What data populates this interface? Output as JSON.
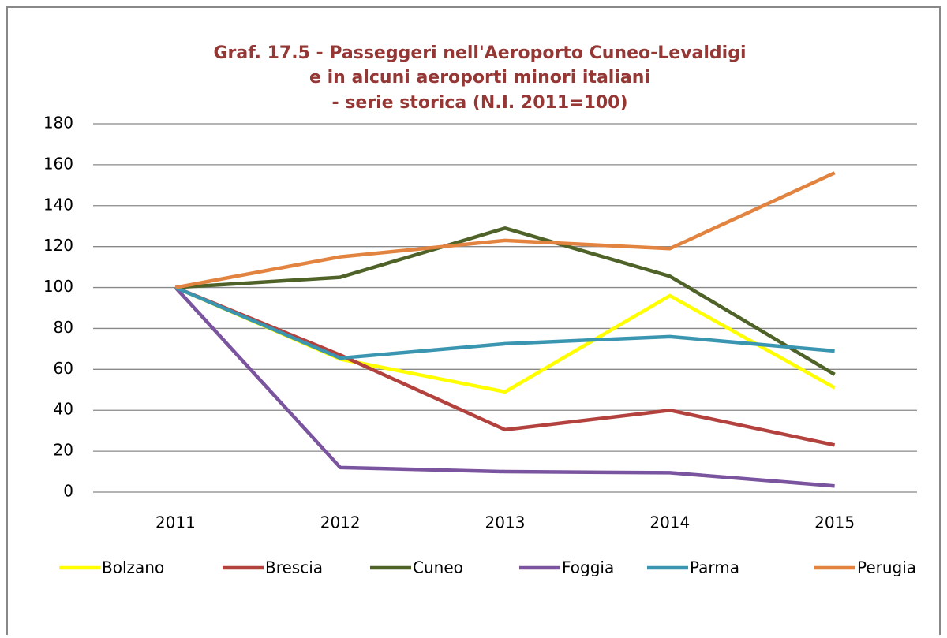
{
  "chart_data": {
    "type": "line",
    "title_lines": [
      "Graf. 17.5 - Passeggeri nell'Aeroporto Cuneo-Levaldigi",
      "e in alcuni aeroporti minori italiani",
      "- serie storica (N.I. 2011=100)"
    ],
    "categories": [
      "2011",
      "2012",
      "2013",
      "2014",
      "2015"
    ],
    "series": [
      {
        "name": "Bolzano",
        "color": "#ffff00",
        "values": [
          100,
          65,
          49,
          96,
          51
        ]
      },
      {
        "name": "Brescia",
        "color": "#b3423e",
        "values": [
          100,
          67,
          30.5,
          40,
          23
        ]
      },
      {
        "name": "Cuneo",
        "color": "#4f6228",
        "values": [
          100,
          105,
          129,
          105.5,
          57.5
        ]
      },
      {
        "name": "Foggia",
        "color": "#7a549e",
        "values": [
          100,
          12,
          10,
          9.5,
          3
        ]
      },
      {
        "name": "Parma",
        "color": "#3a96b0",
        "values": [
          100,
          65.5,
          72.5,
          76,
          69
        ]
      },
      {
        "name": "Perugia",
        "color": "#e2833f",
        "values": [
          100,
          115,
          123,
          119,
          156
        ]
      }
    ],
    "ylim": [
      0,
      180
    ],
    "yticks": [
      0,
      20,
      40,
      60,
      80,
      100,
      120,
      140,
      160,
      180
    ],
    "grid": true,
    "legend": "bottom"
  }
}
